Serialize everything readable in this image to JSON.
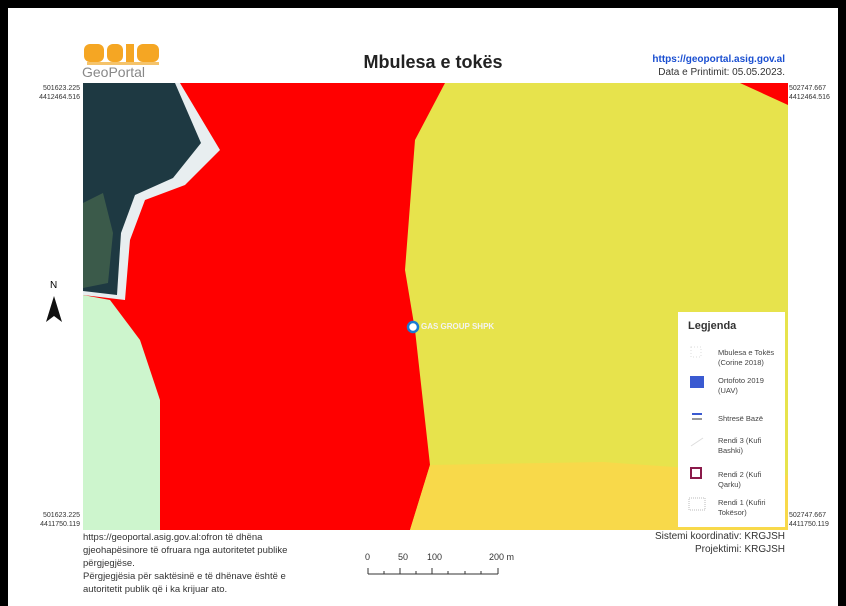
{
  "header": {
    "logo_text": "GeoPortal",
    "title": "Mbulesa e tokës",
    "url": "https://geoportal.asig.gov.al",
    "print_date": "Data e Printimit: 05.05.2023."
  },
  "coordinates": {
    "top_left": [
      "501623.225",
      "4412464.516"
    ],
    "top_right": [
      "502747.667",
      "4412464.516"
    ],
    "bottom_left": [
      "501623.225",
      "4411750.119"
    ],
    "bottom_right": [
      "502747.667",
      "4411750.119"
    ]
  },
  "north": "N",
  "feature_label": "GAS GROUP SHPK",
  "legend": {
    "title": "Legjenda",
    "items": [
      "Mbulesa e Tokës (Corine 2018)",
      "Ortofoto 2019 (UAV)",
      "Shtresë Bazë",
      "Rendi 3 (Kufi Bashki)",
      "Rendi 2 (Kufi Qarku)",
      "Rendi 1 (Kufiri Tokësor)"
    ]
  },
  "footer": {
    "disclaimer": [
      "https://geoportal.asig.gov.al:ofron të dhëna gjeohapësinore të ofruara nga autoritetet publike përgjegjëse.",
      "Përgjegjësia për saktësinë e të dhënave është e autoritetit publik që i ka krijuar ato."
    ],
    "scale_labels": [
      "0",
      "50",
      "100",
      "200 m"
    ],
    "coordinate_system": "Sistemi koordinativ: KRGJSH",
    "projection": "Projektimi: KRGJSH"
  }
}
